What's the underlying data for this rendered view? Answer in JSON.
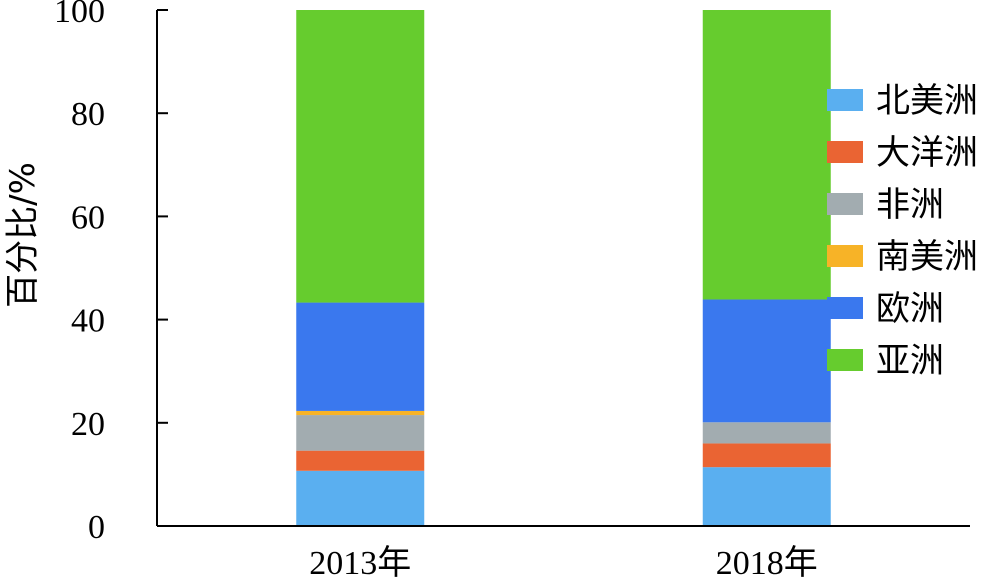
{
  "chart_data": {
    "type": "bar",
    "stacked": true,
    "categories": [
      "2013年",
      "2018年"
    ],
    "ylabel": "百分比/%",
    "ylim": [
      0,
      100
    ],
    "yticks": [
      0,
      20,
      40,
      60,
      80,
      100
    ],
    "grid": false,
    "legend_position": "right",
    "series": [
      {
        "name": "北美洲",
        "color": "#5aaff0",
        "values": [
          10.7,
          11.4
        ]
      },
      {
        "name": "大洋洲",
        "color": "#ea6433",
        "values": [
          3.9,
          4.6
        ]
      },
      {
        "name": "非洲",
        "color": "#a2acb0",
        "values": [
          6.9,
          4.1
        ]
      },
      {
        "name": "南美洲",
        "color": "#f7b327",
        "values": [
          0.8,
          0.0
        ]
      },
      {
        "name": "欧洲",
        "color": "#3a78ee",
        "values": [
          21.0,
          23.8
        ]
      },
      {
        "name": "亚洲",
        "color": "#66cc2e",
        "values": [
          56.7,
          56.1
        ]
      }
    ]
  }
}
